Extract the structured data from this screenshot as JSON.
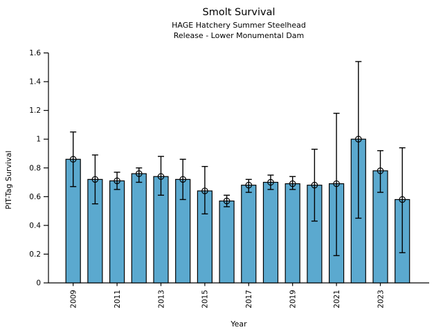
{
  "title": "Smolt Survival",
  "subtitle1": "HAGE Hatchery Summer Steelhead",
  "subtitle2": "Release - Lower Monumental Dam",
  "colors": {
    "bar_fill": "#5BA9CF",
    "bar_edge": "#000000",
    "error_bar": "#000000",
    "axis": "#000000",
    "text": "#000000",
    "background": "#ffffff"
  },
  "chart_data": {
    "type": "bar",
    "title": "Smolt Survival",
    "subtitle": [
      "HAGE Hatchery Summer Steelhead",
      "Release - Lower Monumental Dam"
    ],
    "xlabel": "Year",
    "ylabel": "PIT-Tag Survival",
    "ylim": [
      0,
      1.6
    ],
    "grid": false,
    "legend": null,
    "ytick_values": [
      0,
      0.2,
      0.4,
      0.6,
      0.8,
      1.0,
      1.2,
      1.4,
      1.6
    ],
    "ytick_labels": [
      "0",
      "0.2",
      "0.4",
      "0.6",
      "0.8",
      "1",
      "1.2",
      "1.4",
      "1.6"
    ],
    "xtick_labels": [
      "2009",
      "2011",
      "2013",
      "2015",
      "2017",
      "2019",
      "2021",
      "2023"
    ],
    "xticks_every": 2,
    "xtick_label_rotation": 90,
    "categories": [
      2009,
      2010,
      2011,
      2012,
      2013,
      2014,
      2015,
      2016,
      2017,
      2018,
      2019,
      2020,
      2021,
      2022,
      2023,
      2024
    ],
    "values": [
      0.86,
      0.72,
      0.71,
      0.76,
      0.74,
      0.72,
      0.64,
      0.57,
      0.68,
      0.7,
      0.69,
      0.68,
      0.69,
      1.0,
      0.78,
      0.58
    ],
    "error_low": [
      0.67,
      0.55,
      0.65,
      0.7,
      0.61,
      0.58,
      0.48,
      0.53,
      0.63,
      0.65,
      0.65,
      0.43,
      0.19,
      0.45,
      0.63,
      0.21
    ],
    "error_high": [
      1.05,
      0.89,
      0.77,
      0.8,
      0.88,
      0.86,
      0.81,
      0.61,
      0.72,
      0.75,
      0.74,
      0.93,
      1.18,
      1.54,
      0.92,
      0.94
    ],
    "marker": "open-circle"
  }
}
